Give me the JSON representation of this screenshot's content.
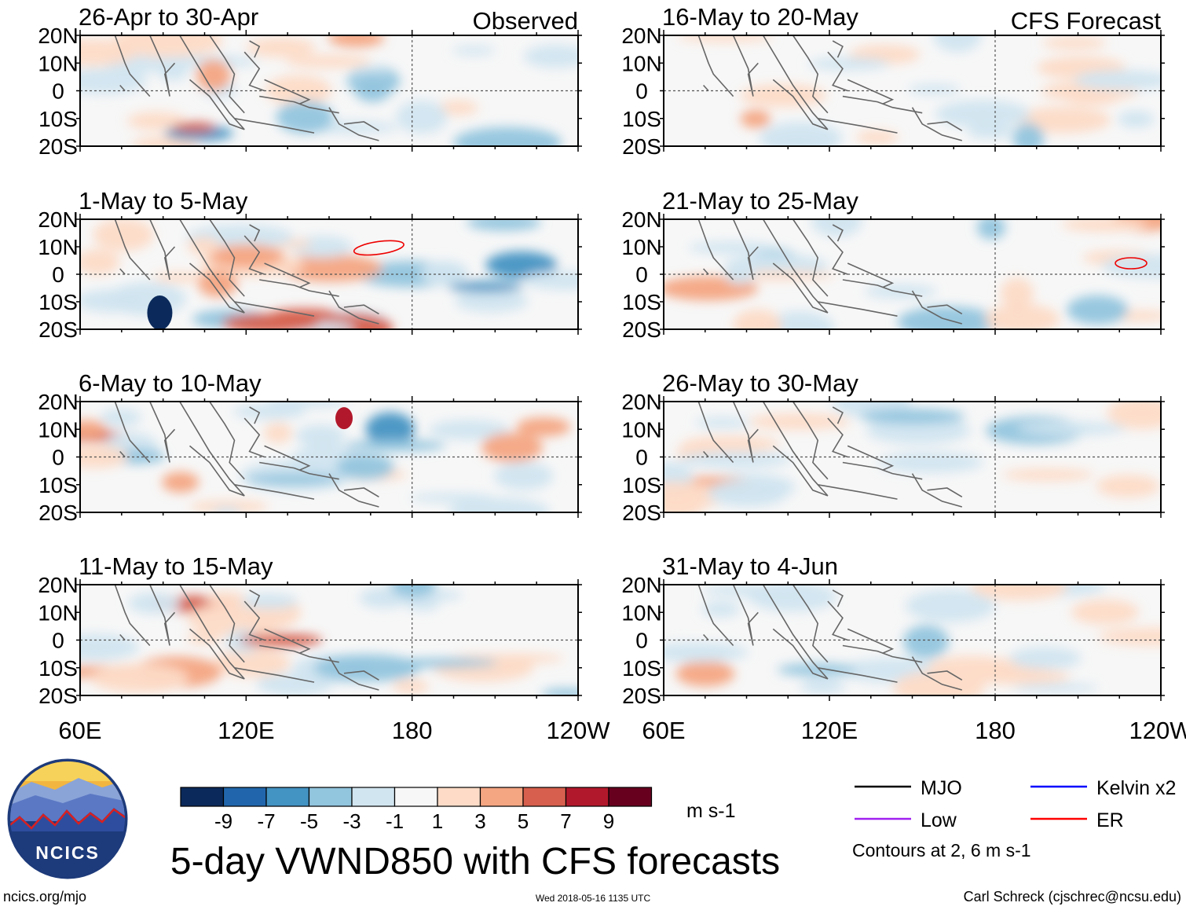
{
  "chart_data": {
    "type": "heatmap",
    "title": "5-day VWND850 with CFS forecasts",
    "variable": "VWND850",
    "units": "m s-1",
    "x_ticks": [
      "60E",
      "120E",
      "180",
      "120W"
    ],
    "y_ticks": [
      "20N",
      "10N",
      "0",
      "10S",
      "20S"
    ],
    "xlim": [
      60,
      240
    ],
    "ylim": [
      -20,
      20
    ],
    "columns": [
      {
        "label": "Observed",
        "panels": [
          "26-Apr to 30-Apr",
          "1-May to 5-May",
          "6-May to 10-May",
          "11-May to 15-May"
        ]
      },
      {
        "label": "CFS Forecast",
        "panels": [
          "16-May to 20-May",
          "21-May to 25-May",
          "26-May to 30-May",
          "31-May to 4-Jun"
        ]
      }
    ],
    "colorbar": {
      "ticks": [
        "-9",
        "-7",
        "-5",
        "-3",
        "-1",
        "1",
        "3",
        "5",
        "7",
        "9"
      ],
      "colors": [
        "#0b2a5b",
        "#2166ac",
        "#4393c3",
        "#92c5de",
        "#d1e5f0",
        "#f7f7f7",
        "#fddbc7",
        "#f4a582",
        "#d6604d",
        "#b2182b",
        "#67001f"
      ]
    },
    "legend": [
      {
        "label": "MJO",
        "color": "#000000"
      },
      {
        "label": "Kelvin x2",
        "color": "#0000ff"
      },
      {
        "label": "Low",
        "color": "#a020f0"
      },
      {
        "label": "ER",
        "color": "#ff0000"
      }
    ],
    "contour_note": "Contours at 2, 6 m s-1"
  },
  "footer": {
    "site": "ncics.org/mjo",
    "timestamp": "Wed 2018-05-16 1135 UTC",
    "author": "Carl Schreck (cjschrec@ncsu.edu)"
  },
  "logo": {
    "text": "NCICS"
  }
}
